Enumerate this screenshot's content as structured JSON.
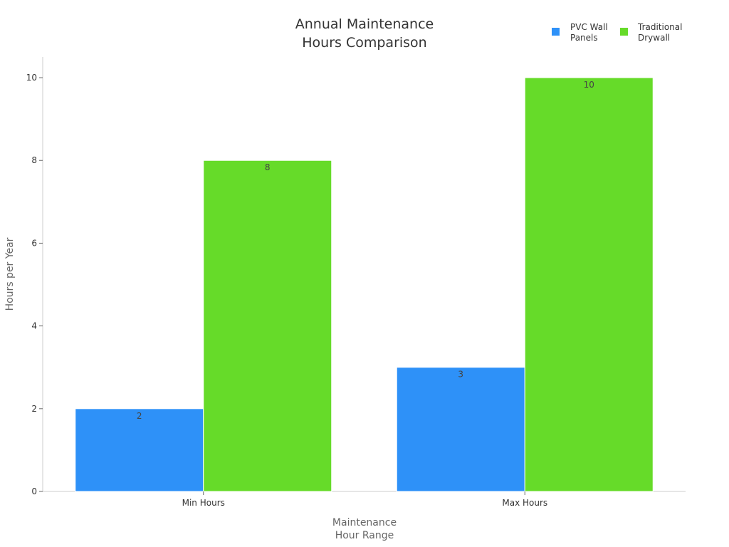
{
  "colors": {
    "pvc": "#2e91f8",
    "drywall": "#66db29",
    "axis": "#cccccc"
  },
  "chart_data": {
    "type": "bar",
    "title_lines": [
      "Annual Maintenance",
      "Hours Comparison"
    ],
    "xlabel_lines": [
      "Maintenance",
      "Hour Range"
    ],
    "ylabel": "Hours per Year",
    "categories": [
      "Min Hours",
      "Max Hours"
    ],
    "series": [
      {
        "name_lines": [
          "PVC Wall",
          "Panels"
        ],
        "values": [
          2,
          3
        ]
      },
      {
        "name_lines": [
          "Traditional",
          "Drywall"
        ],
        "values": [
          8,
          10
        ]
      }
    ],
    "ylim": [
      0,
      10.5
    ],
    "yticks": [
      0,
      2,
      4,
      6,
      8,
      10
    ],
    "grid": false,
    "legend": "top-right",
    "data_labels": true
  }
}
